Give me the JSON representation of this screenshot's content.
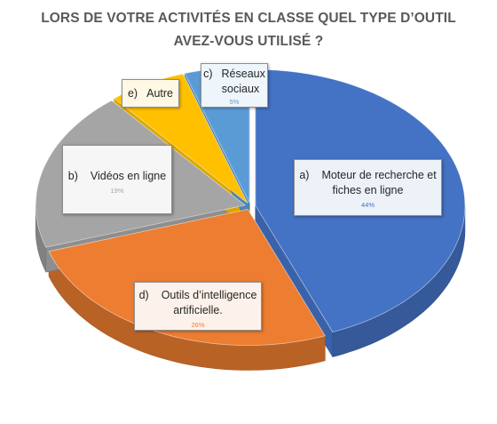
{
  "chart_data": {
    "type": "pie",
    "title": "LORS DE VOTRE ACTIVITÉS EN CLASSE QUEL TYPE D'OUTIL AVEZ-VOUS UTILISÉ ?",
    "title_lines": [
      "LORS DE VOTRE ACTIVITÉS EN CLASSE QUEL TYPE D’OUTIL",
      "AVEZ-VOUS UTILISÉ ?"
    ],
    "style": "3d-exploded",
    "slices": [
      {
        "key": "a)",
        "name": "Moteur de recherche et fiches en ligne",
        "name_lines": [
          "Moteur de recherche et",
          "fiches en ligne"
        ],
        "value": 44,
        "label": "44%",
        "color": "#4472c4"
      },
      {
        "key": "d)",
        "name": "Outils d’intelligence artificielle.",
        "name_lines": [
          "Outils d’intelligence",
          "artificielle."
        ],
        "value": 26,
        "label": "26%",
        "color": "#ed7d31"
      },
      {
        "key": "b)",
        "name": "Vidéos en ligne",
        "name_lines": [
          "Vidéos en ligne"
        ],
        "value": 19,
        "label": "19%",
        "color": "#a5a5a5"
      },
      {
        "key": "e)",
        "name": "Autre",
        "name_lines": [
          "Autre"
        ],
        "value": 6,
        "label": "",
        "color": "#ffc000"
      },
      {
        "key": "c)",
        "name": "Réseaux sociaux",
        "name_lines": [
          "Réseaux",
          "sociaux"
        ],
        "value": 5,
        "label": "5%",
        "color": "#5b9bd5"
      }
    ]
  }
}
